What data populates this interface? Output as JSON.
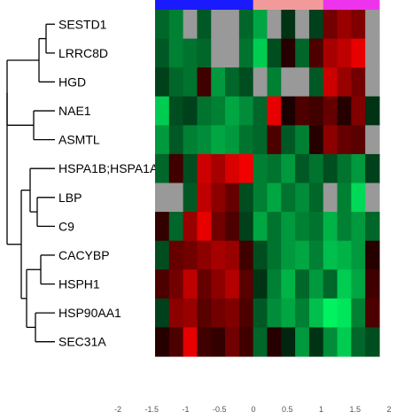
{
  "chart_data": {
    "type": "heatmap",
    "title": "",
    "xlabel": "",
    "ylabel": "",
    "rows": [
      "SESTD1",
      "LRRC8D",
      "HGD",
      "NAE1",
      "ASMTL",
      "HSPA1B;HSPA1A",
      "LBP",
      "C9",
      "CACYBP",
      "HSPH1",
      "HSP90AA1",
      "SEC31A"
    ],
    "column_groups": [
      {
        "color": "#1a1aff",
        "count": 7
      },
      {
        "color": "#f29a9a",
        "count": 5
      },
      {
        "color": "#ee33ee",
        "count": 4
      }
    ],
    "na_color": "#999999",
    "color_scale": {
      "low": "#00ff66",
      "mid": "#000000",
      "high": "#ff0000",
      "range": [
        -2,
        2
      ],
      "ticks": [
        "-2",
        "-1.5",
        "-1",
        "-0.5",
        "0",
        "0.5",
        "1",
        "1.5",
        "2"
      ]
    },
    "values": [
      [
        -0.8,
        -1.0,
        null,
        -0.7,
        null,
        null,
        -0.8,
        -1.3,
        null,
        -0.4,
        null,
        -0.5,
        0.9,
        1.2,
        1.0,
        null
      ],
      [
        -0.7,
        -1.0,
        -0.9,
        -0.8,
        null,
        null,
        -0.9,
        -1.6,
        -0.6,
        0.3,
        -0.8,
        0.6,
        1.3,
        1.5,
        1.8,
        null
      ],
      [
        -0.5,
        -0.8,
        -0.9,
        0.5,
        -1.2,
        -0.8,
        -0.6,
        null,
        -1.0,
        null,
        null,
        -0.7,
        1.6,
        1.2,
        0.9,
        null
      ],
      [
        -1.6,
        -0.6,
        -0.5,
        -0.9,
        -1.0,
        -1.3,
        -1.1,
        -0.8,
        1.8,
        0.2,
        0.6,
        0.5,
        0.8,
        0.3,
        1.0,
        -0.4
      ],
      [
        -1.2,
        -0.7,
        -1.0,
        -1.1,
        -1.3,
        -1.2,
        -0.9,
        -0.8,
        0.6,
        -0.7,
        -1.0,
        0.3,
        1.1,
        0.8,
        0.7,
        null
      ],
      [
        -0.8,
        0.5,
        -0.6,
        1.6,
        1.3,
        1.7,
        1.9,
        -1.0,
        -0.9,
        -1.2,
        -0.7,
        -0.9,
        -0.6,
        -0.9,
        -1.2,
        -0.5
      ],
      [
        null,
        null,
        -0.7,
        1.5,
        1.1,
        0.8,
        -0.6,
        -1.0,
        -1.3,
        -0.9,
        -1.1,
        -0.8,
        null,
        -1.0,
        -1.7,
        null
      ],
      [
        0.4,
        -0.8,
        1.2,
        1.8,
        0.9,
        0.6,
        -0.5,
        -1.3,
        -0.9,
        -1.2,
        -1.0,
        -0.9,
        -1.4,
        -1.0,
        -1.2,
        -0.8
      ],
      [
        -0.6,
        0.8,
        0.9,
        1.1,
        1.3,
        1.2,
        0.5,
        -0.6,
        -0.9,
        -1.2,
        -1.3,
        -1.0,
        -1.5,
        -1.4,
        -1.2,
        0.3
      ],
      [
        0.6,
        0.9,
        1.5,
        0.8,
        1.1,
        1.4,
        0.7,
        -0.4,
        -1.0,
        -1.4,
        -0.8,
        -1.2,
        -0.8,
        -1.6,
        -1.3,
        0.5
      ],
      [
        -0.5,
        1.1,
        1.2,
        0.7,
        0.9,
        1.0,
        0.6,
        -0.7,
        -1.1,
        -1.3,
        -1.0,
        -1.5,
        -1.9,
        -1.8,
        -1.0,
        0.6
      ],
      [
        0.3,
        0.6,
        1.8,
        0.5,
        0.4,
        0.9,
        0.5,
        -0.8,
        0.3,
        -0.3,
        -1.2,
        -0.4,
        -1.1,
        -1.6,
        -0.8,
        -0.6
      ]
    ]
  }
}
